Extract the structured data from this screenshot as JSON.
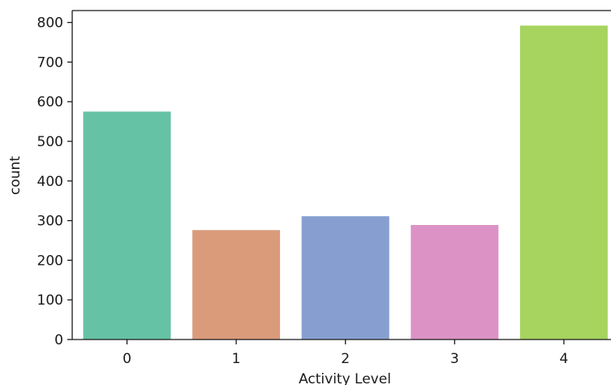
{
  "chart_data": {
    "type": "bar",
    "xlabel": "Activity Level",
    "ylabel": "count",
    "categories": [
      "0",
      "1",
      "2",
      "3",
      "4"
    ],
    "values": [
      575,
      276,
      311,
      289,
      792
    ],
    "colors": [
      "#66c2a5",
      "#da9b7b",
      "#879fd0",
      "#dc92c4",
      "#a6d45f"
    ],
    "ylim": [
      0,
      830
    ],
    "yticks": [
      0,
      100,
      200,
      300,
      400,
      500,
      600,
      700,
      800
    ],
    "grid": false,
    "legend": "none"
  }
}
